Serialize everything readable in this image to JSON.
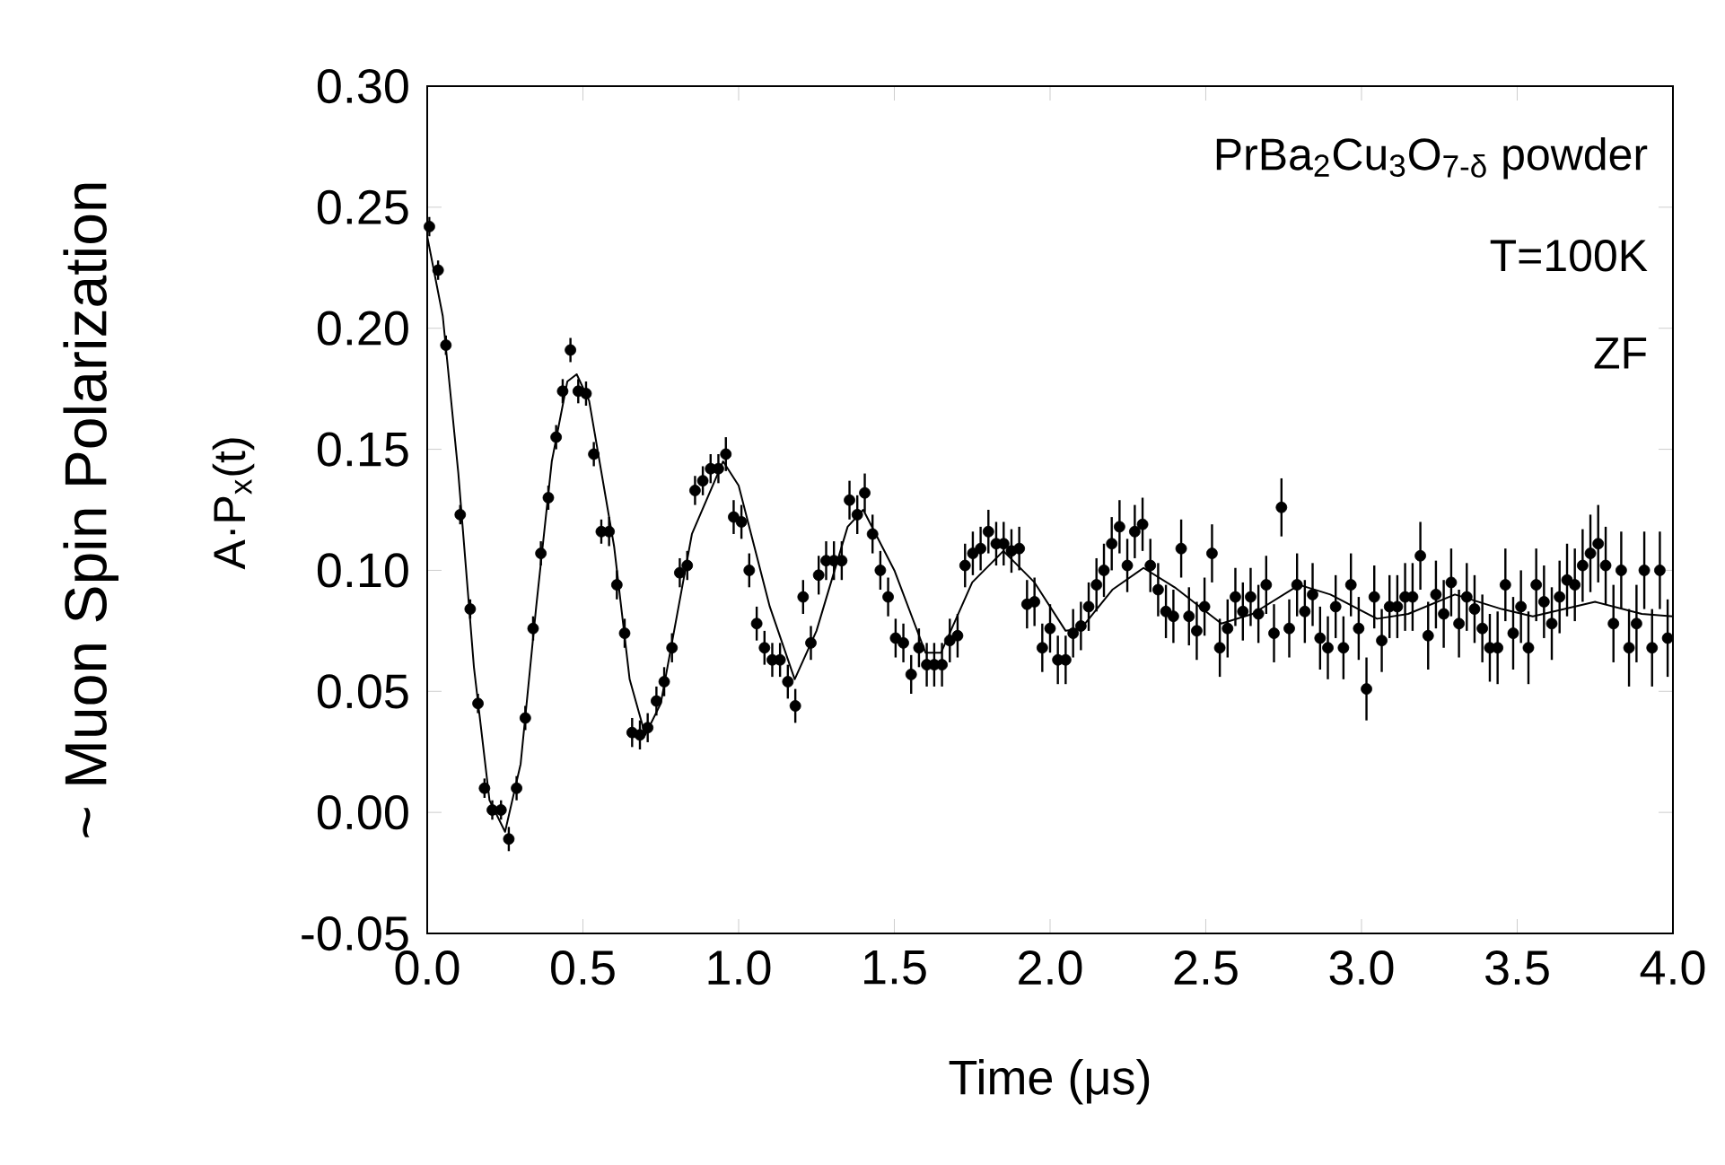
{
  "chart_data": {
    "type": "scatter",
    "xlabel": "Time (μs)",
    "ylabel": "~ Muon Spin Polarization",
    "annotations": [
      "PrBa$_{2}$Cu$_{3}$O$_{7-δ}$ powder",
      "T=100K",
      "ZF",
      "A·P$_{x}$(t)"
    ],
    "xlim": [
      0,
      4
    ],
    "ylim": [
      -0.05,
      0.3
    ],
    "xticks": [
      {
        "value": 0,
        "label": "0.0"
      },
      {
        "value": 0.5,
        "label": "0.5"
      },
      {
        "value": 1,
        "label": "1.0"
      },
      {
        "value": 1.5,
        "label": "1.5"
      },
      {
        "value": 2,
        "label": "2.0"
      },
      {
        "value": 2.5,
        "label": "2.5"
      },
      {
        "value": 3,
        "label": "3.0"
      },
      {
        "value": 3.5,
        "label": "3.5"
      },
      {
        "value": 4,
        "label": "4.0"
      }
    ],
    "yticks": [
      {
        "value": -0.05,
        "label": "-0.05"
      },
      {
        "value": 0,
        "label": "0.00"
      },
      {
        "value": 0.05,
        "label": "0.05"
      },
      {
        "value": 0.1,
        "label": "0.10"
      },
      {
        "value": 0.15,
        "label": "0.15"
      },
      {
        "value": 0.2,
        "label": "0.20"
      },
      {
        "value": 0.25,
        "label": "0.25"
      },
      {
        "value": 0.3,
        "label": "0.30"
      }
    ],
    "series": [
      {
        "type": "scatter",
        "marker": "circle",
        "color": "#000000",
        "x": [
          0.007,
          0.035,
          0.06,
          0.106,
          0.138,
          0.163,
          0.184,
          0.209,
          0.237,
          0.262,
          0.287,
          0.315,
          0.34,
          0.365,
          0.389,
          0.414,
          0.435,
          0.46,
          0.485,
          0.51,
          0.535,
          0.559,
          0.584,
          0.609,
          0.634,
          0.658,
          0.683,
          0.708,
          0.736,
          0.761,
          0.786,
          0.811,
          0.835,
          0.86,
          0.885,
          0.91,
          0.935,
          0.959,
          0.984,
          1.009,
          1.034,
          1.058,
          1.083,
          1.108,
          1.133,
          1.158,
          1.182,
          1.207,
          1.232,
          1.257,
          1.281,
          1.306,
          1.331,
          1.356,
          1.381,
          1.405,
          1.43,
          1.455,
          1.48,
          1.504,
          1.529,
          1.554,
          1.579,
          1.604,
          1.628,
          1.653,
          1.678,
          1.703,
          1.727,
          1.752,
          1.777,
          1.802,
          1.827,
          1.851,
          1.876,
          1.901,
          1.926,
          1.95,
          1.975,
          2.0,
          2.025,
          2.05,
          2.074,
          2.099,
          2.124,
          2.149,
          2.173,
          2.198,
          2.223,
          2.248,
          2.272,
          2.297,
          2.322,
          2.347,
          2.372,
          2.396,
          2.421,
          2.446,
          2.471,
          2.496,
          2.52,
          2.545,
          2.57,
          2.595,
          2.619,
          2.644,
          2.669,
          2.694,
          2.719,
          2.743,
          2.768,
          2.793,
          2.818,
          2.843,
          2.867,
          2.892,
          2.917,
          2.942,
          2.966,
          2.991,
          3.016,
          3.041,
          3.065,
          3.09,
          3.115,
          3.14,
          3.164,
          3.189,
          3.214,
          3.239,
          3.264,
          3.288,
          3.313,
          3.338,
          3.363,
          3.388,
          3.412,
          3.437,
          3.462,
          3.487,
          3.512,
          3.536,
          3.561,
          3.586,
          3.611,
          3.636,
          3.66,
          3.685,
          3.71,
          3.735,
          3.76,
          3.784,
          3.809,
          3.834,
          3.859,
          3.883,
          3.908,
          3.933,
          3.958,
          3.983
        ],
        "values": [
          0.242,
          0.224,
          0.193,
          0.123,
          0.084,
          0.045,
          0.01,
          0.001,
          0.001,
          -0.011,
          0.01,
          0.039,
          0.076,
          0.107,
          0.13,
          0.155,
          0.174,
          0.191,
          0.174,
          0.173,
          0.148,
          0.116,
          0.116,
          0.094,
          0.074,
          0.033,
          0.032,
          0.035,
          0.046,
          0.054,
          0.068,
          0.099,
          0.102,
          0.133,
          0.137,
          0.142,
          0.142,
          0.148,
          0.122,
          0.12,
          0.1,
          0.078,
          0.068,
          0.063,
          0.063,
          0.054,
          0.044,
          0.089,
          0.07,
          0.098,
          0.104,
          0.104,
          0.104,
          0.129,
          0.123,
          0.132,
          0.115,
          0.1,
          0.089,
          0.072,
          0.07,
          0.057,
          0.068,
          0.061,
          0.061,
          0.061,
          0.071,
          0.073,
          0.102,
          0.107,
          0.109,
          0.116,
          0.111,
          0.111,
          0.108,
          0.109,
          0.086,
          0.087,
          0.068,
          0.076,
          0.063,
          0.063,
          0.074,
          0.077,
          0.085,
          0.094,
          0.1,
          0.111,
          0.118,
          0.102,
          0.116,
          0.119,
          0.102,
          0.092,
          0.083,
          0.081,
          0.109,
          0.081,
          0.075,
          0.085,
          0.107,
          0.068,
          0.076,
          0.089,
          0.083,
          0.089,
          0.082,
          0.094,
          0.074,
          0.126,
          0.076,
          0.094,
          0.083,
          0.09,
          0.072,
          0.068,
          0.085,
          0.068,
          0.094,
          0.076,
          0.051,
          0.089,
          0.071,
          0.085,
          0.085,
          0.089,
          0.089,
          0.106,
          0.073,
          0.09,
          0.082,
          0.095,
          0.078,
          0.089,
          0.084,
          0.076,
          0.068,
          0.068,
          0.094,
          0.074,
          0.085,
          0.068,
          0.094,
          0.087,
          0.078,
          0.089,
          0.096,
          0.094,
          0.102,
          0.107,
          0.111,
          0.102,
          0.078,
          0.1,
          0.068,
          0.078,
          0.1,
          0.068,
          0.1,
          0.072
        ],
        "errors": [
          0.004,
          0.004,
          0.004,
          0.004,
          0.004,
          0.004,
          0.004,
          0.004,
          0.004,
          0.005,
          0.005,
          0.005,
          0.005,
          0.005,
          0.005,
          0.005,
          0.005,
          0.005,
          0.005,
          0.005,
          0.005,
          0.005,
          0.006,
          0.006,
          0.006,
          0.006,
          0.006,
          0.006,
          0.006,
          0.006,
          0.006,
          0.006,
          0.006,
          0.006,
          0.006,
          0.006,
          0.006,
          0.007,
          0.007,
          0.007,
          0.007,
          0.007,
          0.007,
          0.007,
          0.007,
          0.007,
          0.007,
          0.007,
          0.007,
          0.008,
          0.008,
          0.008,
          0.008,
          0.008,
          0.008,
          0.008,
          0.008,
          0.008,
          0.008,
          0.008,
          0.008,
          0.008,
          0.008,
          0.009,
          0.009,
          0.009,
          0.009,
          0.009,
          0.009,
          0.009,
          0.009,
          0.009,
          0.009,
          0.009,
          0.009,
          0.009,
          0.01,
          0.01,
          0.01,
          0.01,
          0.01,
          0.01,
          0.01,
          0.01,
          0.01,
          0.011,
          0.011,
          0.011,
          0.011,
          0.011,
          0.011,
          0.011,
          0.011,
          0.011,
          0.011,
          0.011,
          0.012,
          0.012,
          0.012,
          0.012,
          0.012,
          0.012,
          0.012,
          0.012,
          0.012,
          0.012,
          0.012,
          0.012,
          0.012,
          0.012,
          0.012,
          0.013,
          0.013,
          0.013,
          0.013,
          0.013,
          0.013,
          0.013,
          0.013,
          0.013,
          0.013,
          0.013,
          0.013,
          0.013,
          0.013,
          0.014,
          0.014,
          0.014,
          0.014,
          0.014,
          0.014,
          0.014,
          0.014,
          0.014,
          0.014,
          0.014,
          0.014,
          0.015,
          0.015,
          0.015,
          0.015,
          0.015,
          0.015,
          0.015,
          0.015,
          0.015,
          0.015,
          0.015,
          0.015,
          0.016,
          0.016,
          0.016,
          0.016,
          0.016,
          0.016,
          0.016,
          0.016,
          0.016,
          0.016,
          0.016
        ]
      },
      {
        "type": "line",
        "marker": "none",
        "color": "#000000",
        "x": [
          0,
          0.05,
          0.1,
          0.15,
          0.2,
          0.25,
          0.3,
          0.35,
          0.4,
          0.45,
          0.48,
          0.52,
          0.6,
          0.65,
          0.7,
          0.75,
          0.85,
          0.95,
          1.0,
          1.1,
          1.18,
          1.25,
          1.35,
          1.4,
          1.5,
          1.6,
          1.65,
          1.75,
          1.85,
          1.95,
          2.05,
          2.1,
          2.2,
          2.3,
          2.4,
          2.55,
          2.65,
          2.8,
          2.9,
          3.05,
          3.15,
          3.3,
          3.45,
          3.55,
          3.75,
          3.9,
          4.0
        ],
        "values": [
          0.238,
          0.205,
          0.14,
          0.06,
          0.005,
          -0.008,
          0.02,
          0.085,
          0.145,
          0.178,
          0.181,
          0.17,
          0.11,
          0.055,
          0.032,
          0.045,
          0.115,
          0.145,
          0.135,
          0.085,
          0.055,
          0.075,
          0.118,
          0.125,
          0.1,
          0.066,
          0.066,
          0.095,
          0.108,
          0.095,
          0.075,
          0.076,
          0.092,
          0.101,
          0.093,
          0.078,
          0.082,
          0.094,
          0.09,
          0.08,
          0.082,
          0.09,
          0.084,
          0.081,
          0.087,
          0.082,
          0.081
        ]
      }
    ]
  }
}
